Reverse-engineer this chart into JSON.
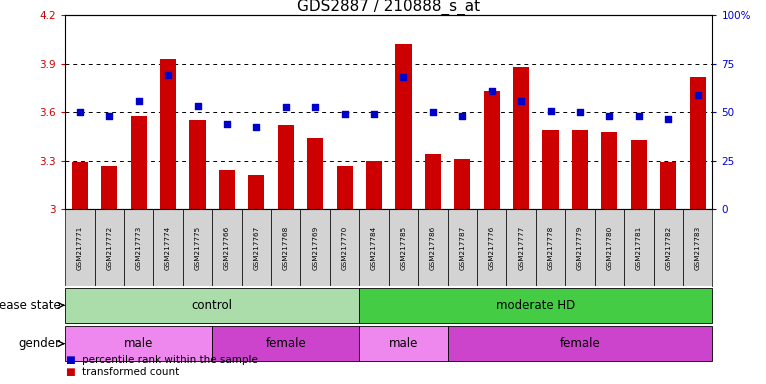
{
  "title": "GDS2887 / 210888_s_at",
  "samples": [
    "GSM217771",
    "GSM217772",
    "GSM217773",
    "GSM217774",
    "GSM217775",
    "GSM217766",
    "GSM217767",
    "GSM217768",
    "GSM217769",
    "GSM217770",
    "GSM217784",
    "GSM217785",
    "GSM217786",
    "GSM217787",
    "GSM217776",
    "GSM217777",
    "GSM217778",
    "GSM217779",
    "GSM217780",
    "GSM217781",
    "GSM217782",
    "GSM217783"
  ],
  "bar_values": [
    3.29,
    3.27,
    3.58,
    3.93,
    3.55,
    3.24,
    3.21,
    3.52,
    3.44,
    3.27,
    3.3,
    4.02,
    3.34,
    3.31,
    3.73,
    3.88,
    3.49,
    3.49,
    3.48,
    3.43,
    3.29,
    3.82
  ],
  "dot_values": [
    3.6,
    3.58,
    3.67,
    3.83,
    3.64,
    3.53,
    3.51,
    3.63,
    3.63,
    3.59,
    3.59,
    3.82,
    3.6,
    3.58,
    3.73,
    3.67,
    3.61,
    3.6,
    3.58,
    3.58,
    3.56,
    3.71
  ],
  "ylim_low": 3.0,
  "ylim_high": 4.2,
  "yticks": [
    3.0,
    3.3,
    3.6,
    3.9,
    4.2
  ],
  "ytick_labels": [
    "3",
    "3.3",
    "3.6",
    "3.9",
    "4.2"
  ],
  "right_ytick_percents": [
    0,
    25,
    50,
    75,
    100
  ],
  "right_ytick_labels": [
    "0",
    "25",
    "50",
    "75",
    "100%"
  ],
  "bar_color": "#cc0000",
  "dot_color": "#0000cc",
  "disease_state_groups": [
    {
      "label": "control",
      "start": 0,
      "end": 10,
      "color": "#aaddaa"
    },
    {
      "label": "moderate HD",
      "start": 10,
      "end": 22,
      "color": "#44cc44"
    }
  ],
  "gender_groups": [
    {
      "label": "male",
      "start": 0,
      "end": 5,
      "color": "#ee88ee"
    },
    {
      "label": "female",
      "start": 5,
      "end": 10,
      "color": "#cc44cc"
    },
    {
      "label": "male",
      "start": 10,
      "end": 13,
      "color": "#ee88ee"
    },
    {
      "label": "female",
      "start": 13,
      "end": 22,
      "color": "#cc44cc"
    }
  ],
  "bar_width": 0.55,
  "title_fontsize": 11,
  "tick_fontsize": 7.5,
  "annot_fontsize": 8.5,
  "sample_fontsize": 5.2,
  "group_fontsize": 8.5,
  "legend_fontsize": 7.5
}
